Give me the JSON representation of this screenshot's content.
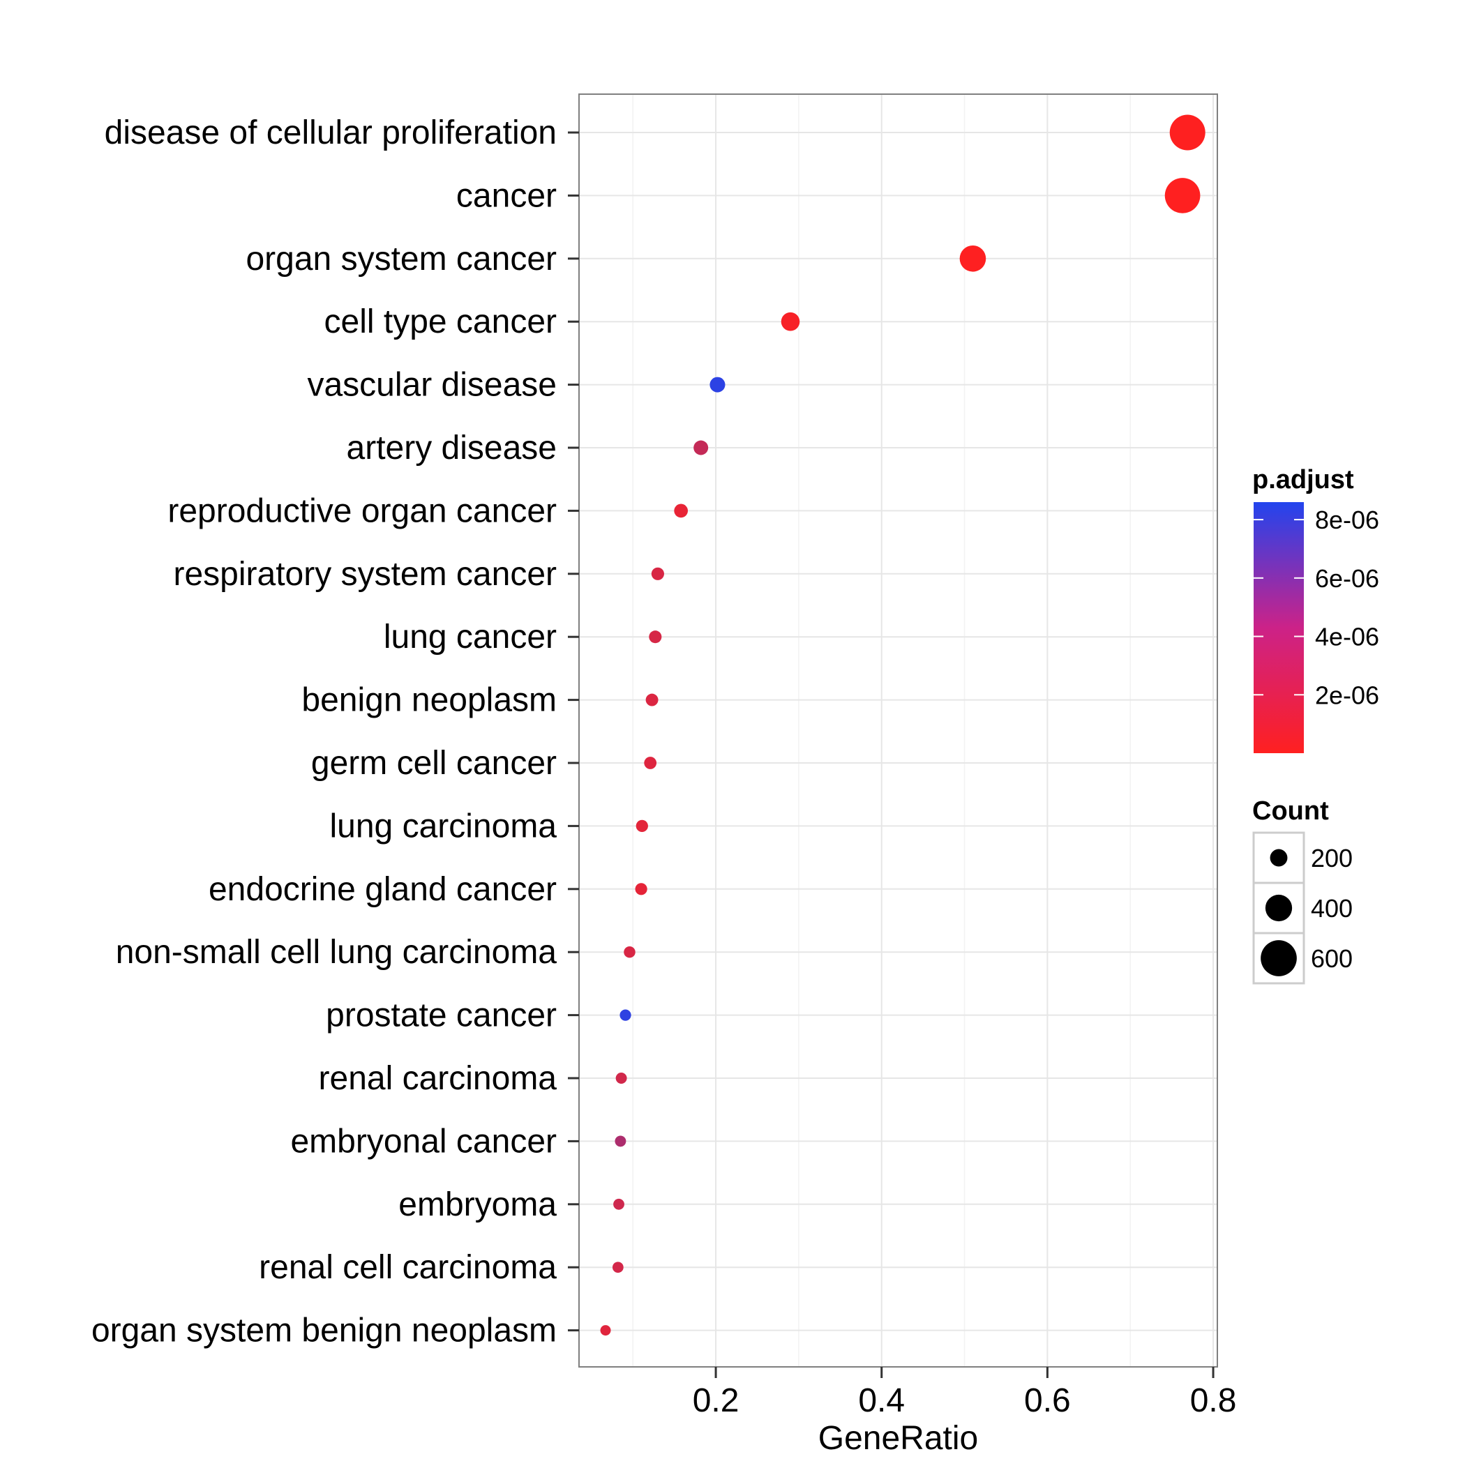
{
  "chart_data": {
    "type": "scatter",
    "title": "",
    "xlabel": "GeneRatio",
    "ylabel": "",
    "xlim": [
      0.035,
      0.805
    ],
    "xticks": [
      0.2,
      0.4,
      0.6,
      0.8
    ],
    "xtick_labels": [
      "0.2",
      "0.4",
      "0.6",
      "0.8"
    ],
    "grid": true,
    "categories": [
      "disease of cellular proliferation",
      "cancer",
      "organ system cancer",
      "cell type cancer",
      "vascular disease",
      "artery disease",
      "reproductive organ cancer",
      "respiratory system cancer",
      "lung cancer",
      "benign neoplasm",
      "germ cell cancer",
      "lung carcinoma",
      "endocrine gland cancer",
      "non-small cell lung carcinoma",
      "prostate cancer",
      "renal carcinoma",
      "embryonal cancer",
      "embryoma",
      "renal cell carcinoma",
      "organ system benign neoplasm"
    ],
    "gene_ratio": [
      0.769,
      0.763,
      0.51,
      0.29,
      0.202,
      0.182,
      0.158,
      0.13,
      0.127,
      0.123,
      0.121,
      0.111,
      0.11,
      0.096,
      0.091,
      0.086,
      0.085,
      0.083,
      0.082,
      0.067
    ],
    "count": [
      590,
      585,
      390,
      225,
      157,
      141,
      122,
      100,
      98,
      95,
      93,
      86,
      85,
      74,
      70,
      66,
      65,
      64,
      63,
      52
    ],
    "p_adjust": [
      2e-08,
      1.5e-08,
      5e-08,
      3e-07,
      8.2e-06,
      2.3e-06,
      9e-07,
      1.5e-06,
      1.6e-06,
      1.4e-06,
      1.3e-06,
      1.1e-06,
      1e-06,
      1.5e-06,
      8.1e-06,
      1.8e-06,
      3.2e-06,
      1.9e-06,
      1.7e-06,
      1.2e-06
    ],
    "color_legend": {
      "title": "p.adjust",
      "range": [
        0,
        8.6e-06
      ],
      "breaks": [
        8e-06,
        6e-06,
        4e-06,
        2e-06
      ],
      "labels": [
        "8e-06",
        "6e-06",
        "4e-06",
        "2e-06"
      ],
      "low_color": "#ff2020",
      "high_color": "#2244ee",
      "position": "right"
    },
    "size_legend": {
      "title": "Count",
      "breaks": [
        200,
        400,
        600
      ],
      "labels": [
        "200",
        "400",
        "600"
      ],
      "position": "right"
    }
  },
  "colors": {
    "panel_bg": "#ffffff",
    "grid_major": "#e6e6e6",
    "grid_minor": "#f2f2f2",
    "panel_border": "#7f7f7f",
    "tick": "#333333"
  }
}
